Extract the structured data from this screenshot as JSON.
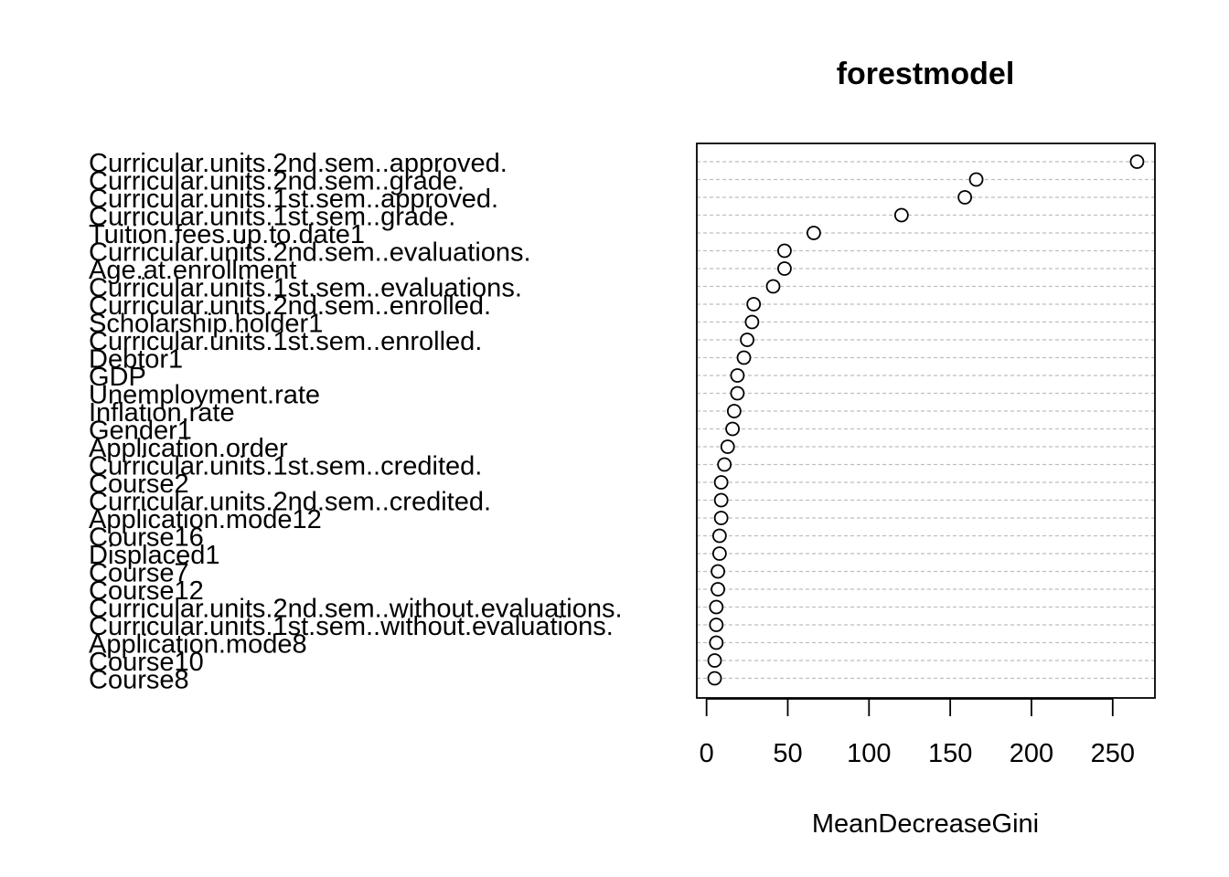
{
  "chart_data": {
    "type": "scatter",
    "title": "forestmodel",
    "xlabel": "MeanDecreaseGini",
    "ylabel": "",
    "xlim": [
      -6,
      276
    ],
    "xticks": [
      0,
      50,
      100,
      150,
      200,
      250
    ],
    "xtick_labels": [
      "0",
      "50",
      "100",
      "150",
      "200",
      "250"
    ],
    "grid": true,
    "grid_style": "dashed-horizontal",
    "categories": [
      "Curricular.units.2nd.sem..approved.",
      "Curricular.units.2nd.sem..grade.",
      "Curricular.units.1st.sem..approved.",
      "Curricular.units.1st.sem..grade.",
      "Tuition.fees.up.to.date1",
      "Curricular.units.2nd.sem..evaluations.",
      "Age.at.enrollment",
      "Curricular.units.1st.sem..evaluations.",
      "Curricular.units.2nd.sem..enrolled.",
      "Scholarship.holder1",
      "Curricular.units.1st.sem..enrolled.",
      "Debtor1",
      "GDP",
      "Unemployment.rate",
      "Inflation.rate",
      "Gender1",
      "Application.order",
      "Curricular.units.1st.sem..credited.",
      "Course2",
      "Curricular.units.2nd.sem..credited.",
      "Application.mode12",
      "Course16",
      "Displaced1",
      "Course7",
      "Course12",
      "Curricular.units.2nd.sem..without.evaluations.",
      "Curricular.units.1st.sem..without.evaluations.",
      "Application.mode8",
      "Course10",
      "Course8"
    ],
    "values": [
      265,
      166,
      159,
      120,
      66,
      48,
      48,
      41,
      29,
      28,
      25,
      23,
      19,
      19,
      17,
      16,
      13,
      11,
      9,
      9,
      9,
      8,
      8,
      7,
      7,
      6,
      6,
      6,
      5,
      5
    ]
  }
}
